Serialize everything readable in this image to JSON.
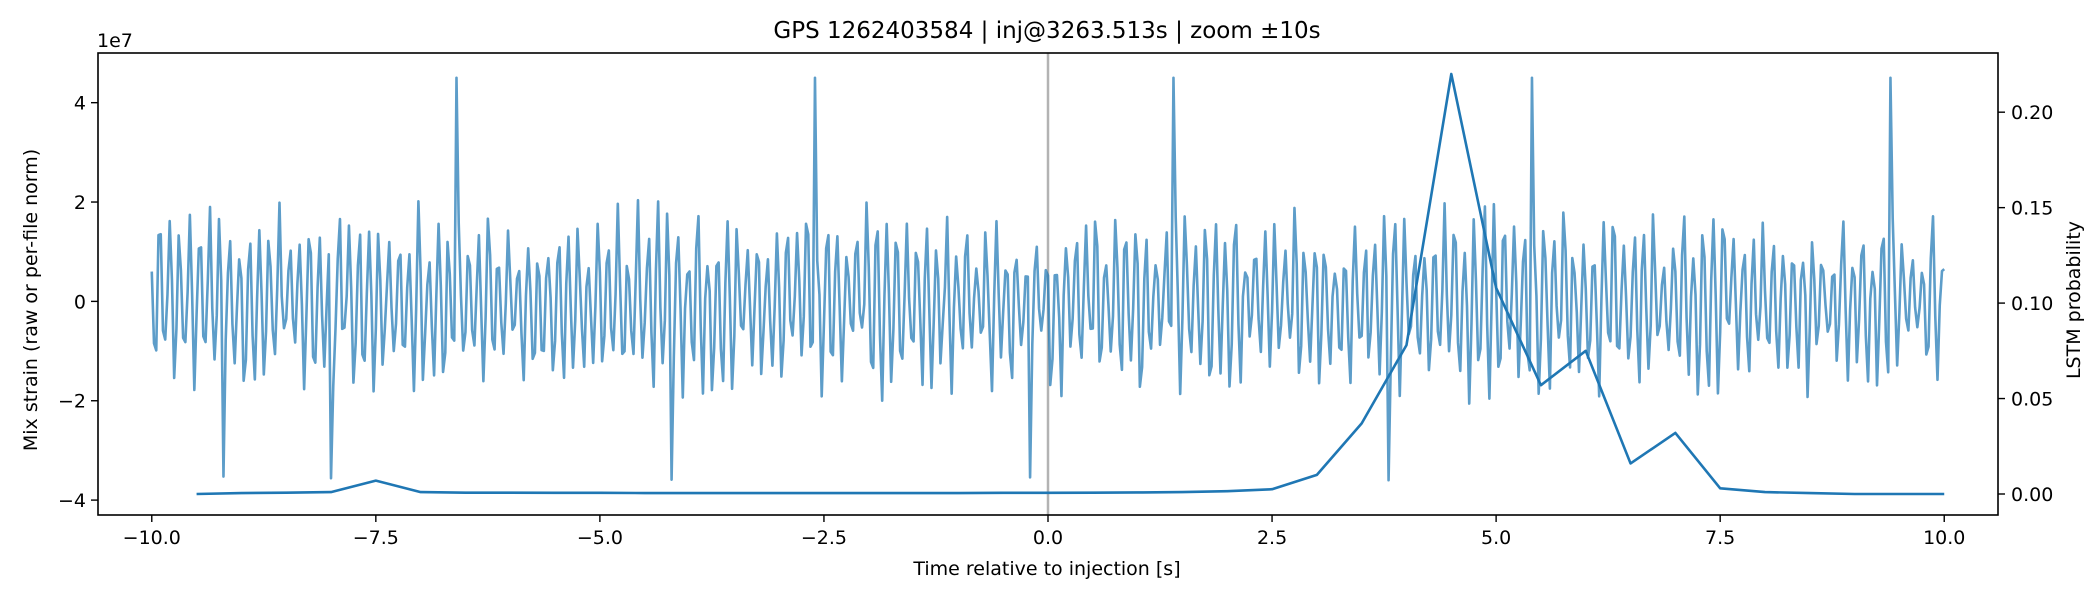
{
  "chart_data": {
    "type": "line",
    "title": "GPS 1262403584 | inj@3263.513s | zoom ±10s",
    "xlabel": "Time relative to injection [s]",
    "ylabel_left": "Mix strain (raw or per-file norm)",
    "ylabel_right": "LSTM probability",
    "offset_label": "1e7",
    "xlim": [
      -10.6,
      10.6
    ],
    "ylim_left": [
      -43000000.0,
      50000000.0
    ],
    "ylim_right": [
      -0.011,
      0.231
    ],
    "x_ticks": [
      -10.0,
      -7.5,
      -5.0,
      -2.5,
      0.0,
      2.5,
      5.0,
      7.5,
      10.0
    ],
    "x_tick_labels": [
      "−10.0",
      "−7.5",
      "−5.0",
      "−2.5",
      "0.0",
      "2.5",
      "5.0",
      "7.5",
      "10.0"
    ],
    "y_left_ticks": [
      -40000000.0,
      -20000000.0,
      0,
      20000000.0,
      40000000.0
    ],
    "y_left_tick_labels": [
      "−4",
      "−2",
      "0",
      "2",
      "4"
    ],
    "y_right_ticks": [
      0.0,
      0.05,
      0.1,
      0.15,
      0.2
    ],
    "y_right_tick_labels": [
      "0.00",
      "0.05",
      "0.10",
      "0.15",
      "0.20"
    ],
    "injection_marker_x": 0.0,
    "series": [
      {
        "name": "Mix strain",
        "axis": "left",
        "color": "#1f77b4",
        "opacity": 0.72,
        "x_start": -10.0,
        "x_end": 10.0,
        "n_points": 801,
        "amplitude_typical": 16000000.0,
        "amplitude_peak": 45000000.0,
        "peak_positions": [
          -6.6,
          -2.6,
          1.4,
          5.4,
          9.4
        ],
        "trough_positions": [
          -9.2,
          -8.0,
          -6.6,
          -4.2,
          -2.6,
          -0.2,
          1.4,
          3.8,
          5.4,
          9.4
        ]
      },
      {
        "name": "LSTM probability",
        "axis": "right",
        "color": "#1f77b4",
        "x": [
          -9.5,
          -9.0,
          -8.5,
          -8.0,
          -7.5,
          -7.0,
          -6.5,
          -6.0,
          -5.5,
          -5.0,
          -4.5,
          -4.0,
          -3.5,
          -3.0,
          -2.5,
          -2.0,
          -1.5,
          -1.0,
          -0.5,
          0.0,
          0.5,
          1.0,
          1.5,
          2.0,
          2.5,
          3.0,
          3.5,
          4.0,
          4.5,
          5.0,
          5.5,
          6.0,
          6.5,
          7.0,
          7.5,
          8.0,
          8.5,
          9.0,
          9.5,
          10.0
        ],
        "y": [
          0.0,
          0.0005,
          0.0007,
          0.001,
          0.007,
          0.001,
          0.0007,
          0.0007,
          0.0006,
          0.0006,
          0.0005,
          0.0005,
          0.0005,
          0.0005,
          0.0005,
          0.0005,
          0.0005,
          0.0005,
          0.0006,
          0.0006,
          0.0007,
          0.0008,
          0.001,
          0.0015,
          0.0025,
          0.01,
          0.037,
          0.078,
          0.22,
          0.108,
          0.057,
          0.075,
          0.016,
          0.032,
          0.003,
          0.001,
          0.0005,
          0.0,
          0.0,
          0.0
        ]
      }
    ]
  }
}
